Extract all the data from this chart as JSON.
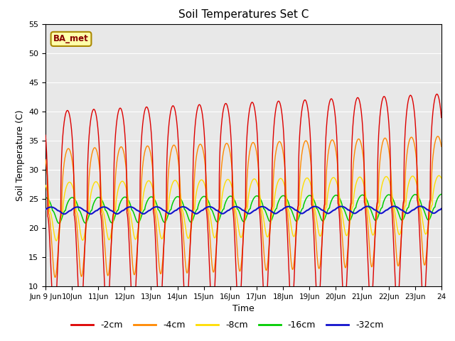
{
  "title": "Soil Temperatures Set C",
  "xlabel": "Time",
  "ylabel": "Soil Temperature (C)",
  "ylim": [
    10,
    55
  ],
  "yticks": [
    10,
    15,
    20,
    25,
    30,
    35,
    40,
    45,
    50,
    55
  ],
  "label_box_text": "BA_met",
  "colors": {
    "m2cm": "#dd0000",
    "m4cm": "#ff8800",
    "m8cm": "#ffdd00",
    "m16cm": "#00cc00",
    "m32cm": "#1111cc"
  },
  "legend_labels": [
    "-2cm",
    "-4cm",
    "-8cm",
    "-16cm",
    "-32cm"
  ],
  "plot_bg": "#e8e8e8",
  "fig_bg": "#ffffff",
  "n_days": 15,
  "date_start": 9,
  "n_pts": 2160
}
